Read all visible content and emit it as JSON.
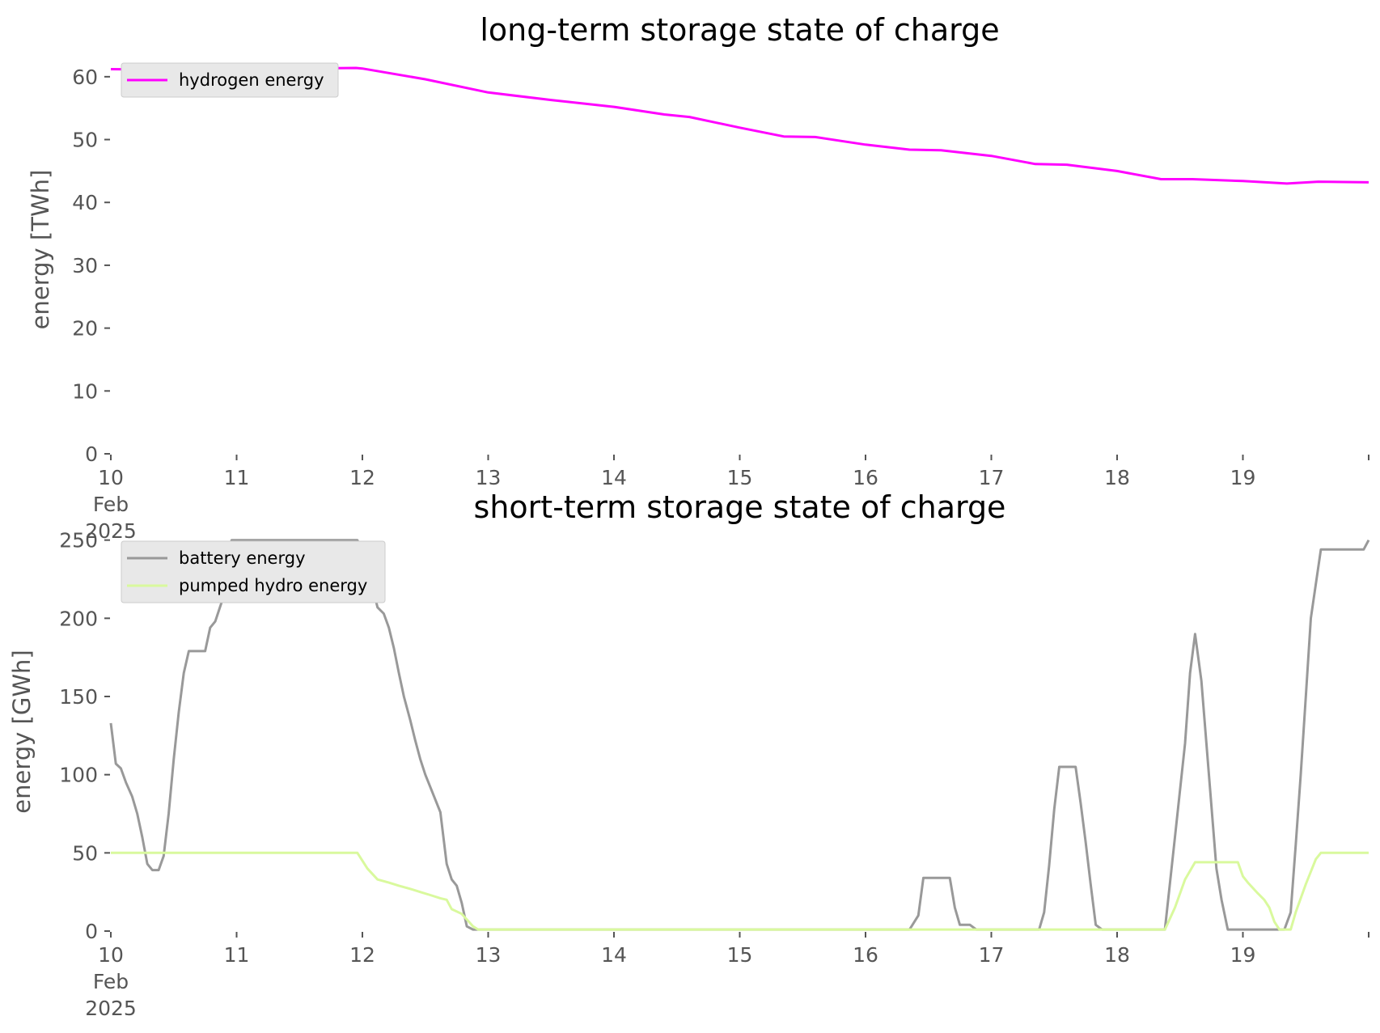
{
  "chart_data": [
    {
      "type": "line",
      "title": "long-term storage state of charge",
      "xlabel": "",
      "ylabel": "energy [TWh]",
      "ylim": [
        0,
        65
      ],
      "xlim": [
        10,
        20
      ],
      "yticks": [
        0,
        10,
        20,
        30,
        40,
        50,
        60
      ],
      "xticks": [
        {
          "value": 10,
          "lines": [
            "10",
            "Feb",
            "2025"
          ]
        },
        {
          "value": 11,
          "lines": [
            "11"
          ]
        },
        {
          "value": 12,
          "lines": [
            "12"
          ]
        },
        {
          "value": 13,
          "lines": [
            "13"
          ]
        },
        {
          "value": 14,
          "lines": [
            "14"
          ]
        },
        {
          "value": 15,
          "lines": [
            "15"
          ]
        },
        {
          "value": 16,
          "lines": [
            "16"
          ]
        },
        {
          "value": 17,
          "lines": [
            "17"
          ]
        },
        {
          "value": 18,
          "lines": [
            "18"
          ]
        },
        {
          "value": 19,
          "lines": [
            "19"
          ]
        }
      ],
      "legend_position": "top-left",
      "grid": false,
      "series": [
        {
          "name": "hydrogen energy",
          "color": "#ff00ff",
          "points": [
            [
              10.0,
              61.2
            ],
            [
              10.5,
              61.1
            ],
            [
              11.0,
              61.2
            ],
            [
              11.5,
              61.3
            ],
            [
              11.95,
              61.4
            ],
            [
              12.0,
              61.3
            ],
            [
              12.5,
              59.6
            ],
            [
              13.0,
              57.5
            ],
            [
              13.5,
              56.3
            ],
            [
              14.0,
              55.2
            ],
            [
              14.4,
              54.0
            ],
            [
              14.6,
              53.6
            ],
            [
              15.0,
              51.9
            ],
            [
              15.35,
              50.5
            ],
            [
              15.6,
              50.4
            ],
            [
              16.0,
              49.2
            ],
            [
              16.35,
              48.4
            ],
            [
              16.6,
              48.3
            ],
            [
              17.0,
              47.4
            ],
            [
              17.35,
              46.1
            ],
            [
              17.6,
              46.0
            ],
            [
              18.0,
              45.0
            ],
            [
              18.35,
              43.7
            ],
            [
              18.6,
              43.7
            ],
            [
              19.0,
              43.4
            ],
            [
              19.35,
              43.0
            ],
            [
              19.6,
              43.3
            ],
            [
              20.0,
              43.2
            ]
          ]
        }
      ]
    },
    {
      "type": "line",
      "title": "short-term storage state of charge",
      "xlabel": "",
      "ylabel": "energy [GWh]",
      "ylim": [
        0,
        255
      ],
      "xlim": [
        10,
        20
      ],
      "yticks": [
        0,
        50,
        100,
        150,
        200,
        250
      ],
      "xticks": [
        {
          "value": 10,
          "lines": [
            "10",
            "Feb",
            "2025"
          ]
        },
        {
          "value": 11,
          "lines": [
            "11"
          ]
        },
        {
          "value": 12,
          "lines": [
            "12"
          ]
        },
        {
          "value": 13,
          "lines": [
            "13"
          ]
        },
        {
          "value": 14,
          "lines": [
            "14"
          ]
        },
        {
          "value": 15,
          "lines": [
            "15"
          ]
        },
        {
          "value": 16,
          "lines": [
            "16"
          ]
        },
        {
          "value": 17,
          "lines": [
            "17"
          ]
        },
        {
          "value": 18,
          "lines": [
            "18"
          ]
        },
        {
          "value": 19,
          "lines": [
            "19"
          ]
        }
      ],
      "legend_position": "top-left",
      "grid": false,
      "series": [
        {
          "name": "battery energy",
          "color": "#999999",
          "points": [
            [
              10.0,
              133
            ],
            [
              10.04,
              107
            ],
            [
              10.08,
              104
            ],
            [
              10.12,
              95
            ],
            [
              10.17,
              86
            ],
            [
              10.21,
              75
            ],
            [
              10.25,
              60
            ],
            [
              10.29,
              43
            ],
            [
              10.33,
              39
            ],
            [
              10.38,
              39
            ],
            [
              10.42,
              48
            ],
            [
              10.46,
              75
            ],
            [
              10.5,
              110
            ],
            [
              10.54,
              140
            ],
            [
              10.58,
              165
            ],
            [
              10.62,
              179
            ],
            [
              10.67,
              179
            ],
            [
              10.71,
              179
            ],
            [
              10.75,
              179
            ],
            [
              10.79,
              194
            ],
            [
              10.83,
              198
            ],
            [
              10.88,
              210
            ],
            [
              10.92,
              230
            ],
            [
              10.96,
              250
            ],
            [
              11.0,
              250
            ],
            [
              11.5,
              250
            ],
            [
              11.96,
              250
            ],
            [
              12.0,
              242
            ],
            [
              12.04,
              232
            ],
            [
              12.08,
              220
            ],
            [
              12.12,
              207
            ],
            [
              12.17,
              203
            ],
            [
              12.21,
              194
            ],
            [
              12.25,
              181
            ],
            [
              12.29,
              165
            ],
            [
              12.33,
              150
            ],
            [
              12.38,
              135
            ],
            [
              12.42,
              122
            ],
            [
              12.46,
              110
            ],
            [
              12.5,
              100
            ],
            [
              12.54,
              92
            ],
            [
              12.58,
              84
            ],
            [
              12.62,
              76
            ],
            [
              12.67,
              43
            ],
            [
              12.71,
              33
            ],
            [
              12.75,
              29
            ],
            [
              12.79,
              18
            ],
            [
              12.83,
              3
            ],
            [
              12.88,
              1
            ],
            [
              12.92,
              1
            ],
            [
              13.0,
              1
            ],
            [
              16.35,
              1
            ],
            [
              16.42,
              10
            ],
            [
              16.46,
              34
            ],
            [
              16.5,
              34
            ],
            [
              16.58,
              34
            ],
            [
              16.67,
              34
            ],
            [
              16.71,
              15
            ],
            [
              16.75,
              4
            ],
            [
              16.83,
              4
            ],
            [
              16.88,
              1
            ],
            [
              17.0,
              1
            ],
            [
              17.38,
              1
            ],
            [
              17.42,
              12
            ],
            [
              17.46,
              42
            ],
            [
              17.5,
              78
            ],
            [
              17.54,
              105
            ],
            [
              17.58,
              105
            ],
            [
              17.67,
              105
            ],
            [
              17.71,
              82
            ],
            [
              17.75,
              57
            ],
            [
              17.79,
              30
            ],
            [
              17.83,
              4
            ],
            [
              17.88,
              1
            ],
            [
              18.0,
              1
            ],
            [
              18.38,
              1
            ],
            [
              18.46,
              60
            ],
            [
              18.54,
              120
            ],
            [
              18.58,
              165
            ],
            [
              18.62,
              190
            ],
            [
              18.67,
              160
            ],
            [
              18.71,
              120
            ],
            [
              18.75,
              80
            ],
            [
              18.79,
              40
            ],
            [
              18.83,
              20
            ],
            [
              18.88,
              1
            ],
            [
              19.0,
              1
            ],
            [
              19.29,
              1
            ],
            [
              19.33,
              1
            ],
            [
              19.38,
              12
            ],
            [
              19.42,
              55
            ],
            [
              19.46,
              100
            ],
            [
              19.5,
              150
            ],
            [
              19.54,
              200
            ],
            [
              19.62,
              244
            ],
            [
              19.71,
              244
            ],
            [
              19.79,
              244
            ],
            [
              19.88,
              244
            ],
            [
              19.96,
              244
            ],
            [
              20.0,
              250
            ]
          ]
        },
        {
          "name": "pumped hydro energy",
          "color": "#d9f99d",
          "points": [
            [
              10.0,
              50
            ],
            [
              10.5,
              50
            ],
            [
              11.0,
              50
            ],
            [
              11.5,
              50
            ],
            [
              11.96,
              50
            ],
            [
              12.04,
              40
            ],
            [
              12.12,
              33
            ],
            [
              12.21,
              31
            ],
            [
              12.29,
              29
            ],
            [
              12.38,
              27
            ],
            [
              12.46,
              25
            ],
            [
              12.54,
              23
            ],
            [
              12.62,
              21
            ],
            [
              12.67,
              20
            ],
            [
              12.71,
              14
            ],
            [
              12.79,
              11
            ],
            [
              12.88,
              3
            ],
            [
              12.92,
              1
            ],
            [
              13.0,
              1
            ],
            [
              18.38,
              1
            ],
            [
              18.46,
              15
            ],
            [
              18.54,
              33
            ],
            [
              18.62,
              44
            ],
            [
              18.71,
              44
            ],
            [
              18.79,
              44
            ],
            [
              18.88,
              44
            ],
            [
              18.96,
              44
            ],
            [
              19.0,
              35
            ],
            [
              19.04,
              31
            ],
            [
              19.12,
              24
            ],
            [
              19.17,
              20
            ],
            [
              19.21,
              15
            ],
            [
              19.25,
              6
            ],
            [
              19.29,
              1
            ],
            [
              19.33,
              1
            ],
            [
              19.38,
              1
            ],
            [
              19.42,
              12
            ],
            [
              19.5,
              30
            ],
            [
              19.58,
              46
            ],
            [
              19.62,
              50
            ],
            [
              19.71,
              50
            ],
            [
              19.79,
              50
            ],
            [
              19.88,
              50
            ],
            [
              20.0,
              50
            ]
          ]
        }
      ]
    }
  ]
}
